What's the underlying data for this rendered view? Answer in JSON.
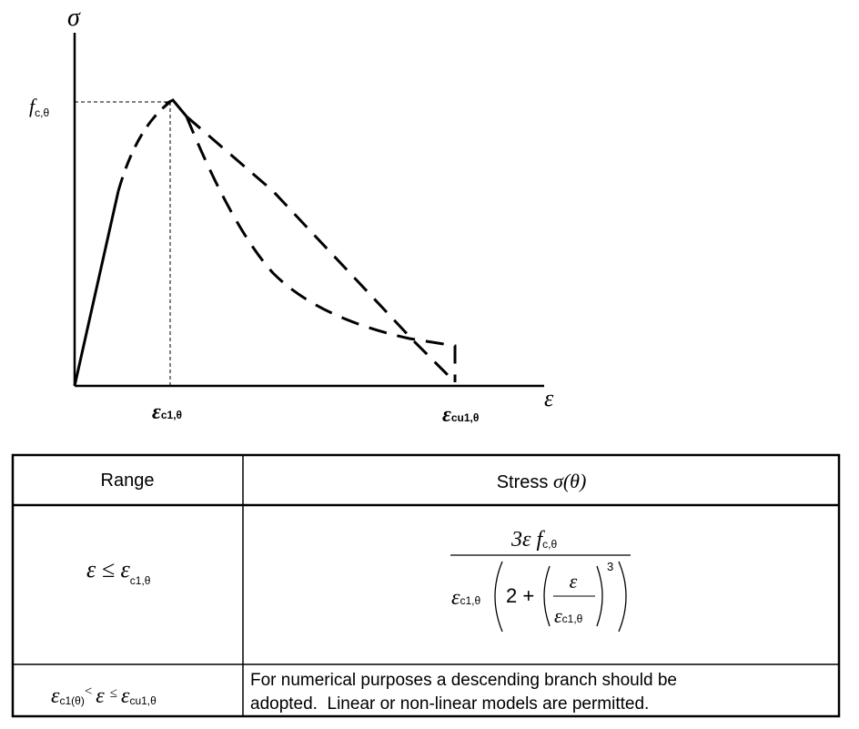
{
  "diagram": {
    "y_axis_label": "σ",
    "x_axis_label": "ε",
    "peak_stress_label": {
      "main": "f",
      "sub": "c,θ"
    },
    "peak_strain_label": {
      "main": "ε",
      "sub": "c1,θ"
    },
    "ultimate_strain_label": {
      "main": "ε",
      "sub": "cu1,θ"
    }
  },
  "table": {
    "header": {
      "range": "Range",
      "stress": {
        "text": "Stress",
        "symbol": "σ(θ)"
      }
    },
    "rows": [
      {
        "range": {
          "main": "ε ≤ ε",
          "sub": "c1,θ"
        },
        "stress": {
          "numerator": {
            "main": "3ε f",
            "sub": "c,θ"
          },
          "denominator": {
            "main": "ε",
            "sub": "c1,θ",
            "term": "2 +",
            "inner_numerator": "ε",
            "inner_denominator": {
              "main": "ε",
              "sub": "c1,θ"
            },
            "exponent": "3"
          }
        }
      },
      {
        "range": {
          "lower": "ε",
          "lower_sub": "c1(θ)",
          "lt": "<",
          "mid": "ε",
          "le": "≤",
          "upper": "ε",
          "upper_sub": "cu1,θ"
        },
        "stress": [
          "For numerical purposes a descending branch should be",
          "adopted.  Linear or non-linear models are permitted."
        ]
      }
    ]
  }
}
